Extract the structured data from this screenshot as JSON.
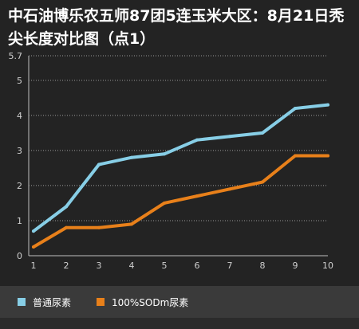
{
  "chart_data": {
    "type": "line",
    "title": "中石油博乐农五师87团5连玉米大区：8月21日秃尖长度对比图（点1）",
    "xlabel": "",
    "ylabel": "",
    "x": [
      1,
      2,
      3,
      4,
      5,
      6,
      7,
      8,
      9,
      10
    ],
    "x_tick_labels": [
      "1",
      "2",
      "3",
      "4",
      "5",
      "6",
      "7",
      "8",
      "9",
      "10"
    ],
    "y_tick_labels": [
      "0",
      "1",
      "2",
      "3",
      "4",
      "5",
      "5.7"
    ],
    "y_ticks": [
      0,
      1,
      2,
      3,
      4,
      5,
      5.7
    ],
    "ylim": [
      0,
      5.7
    ],
    "grid": "horizontal dotted",
    "legend_position": "bottom",
    "series": [
      {
        "name": "普通尿素",
        "color": "#87cee6",
        "values": [
          0.7,
          1.4,
          2.6,
          2.8,
          2.9,
          3.3,
          3.4,
          3.5,
          4.2,
          4.3
        ]
      },
      {
        "name": "100%SODm尿素",
        "color": "#e8801a",
        "values": [
          0.25,
          0.8,
          0.8,
          0.9,
          1.5,
          1.7,
          1.9,
          2.1,
          2.85,
          2.85
        ]
      }
    ]
  }
}
